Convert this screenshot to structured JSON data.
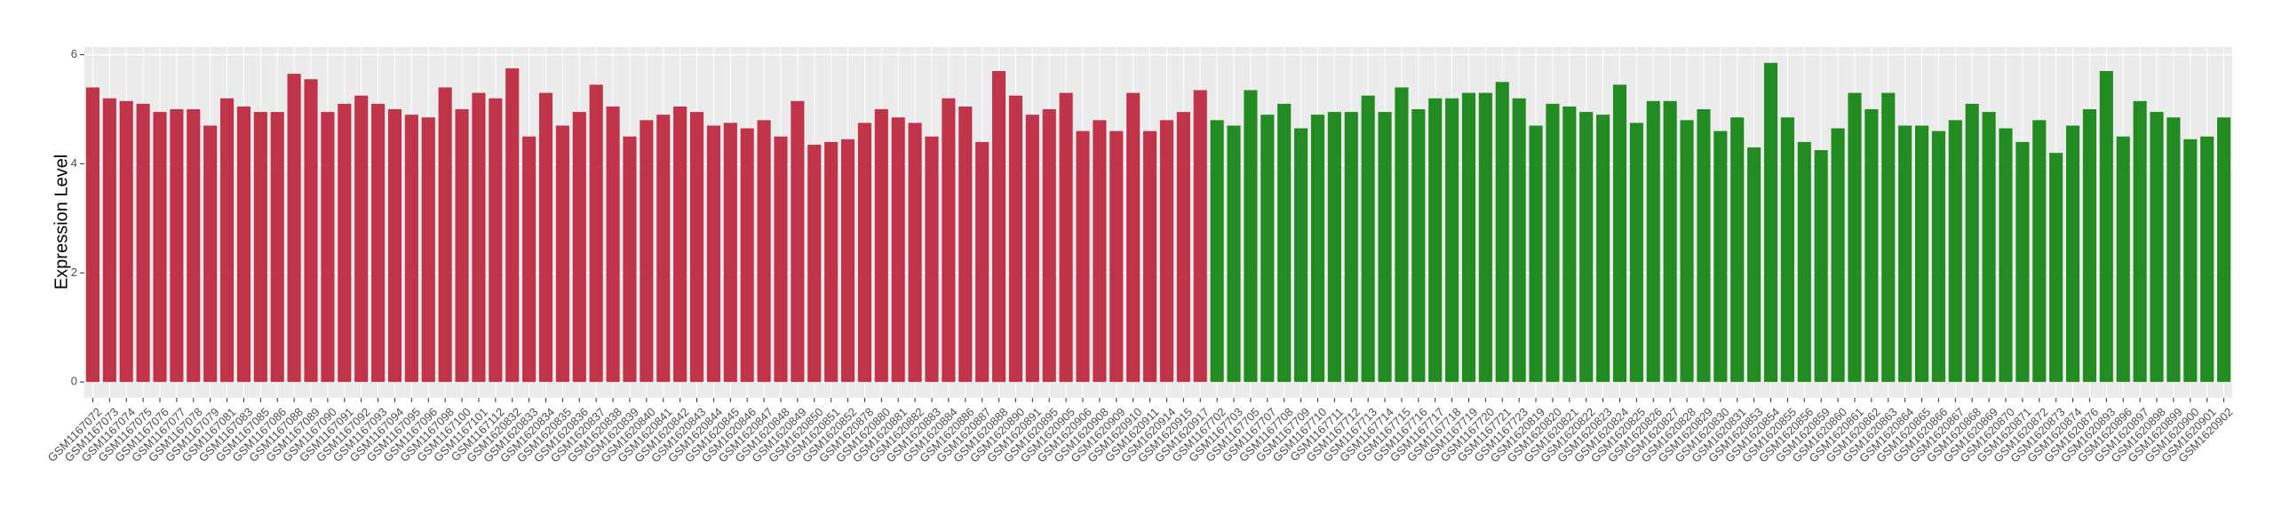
{
  "chart_data": {
    "type": "bar",
    "y_label": "Expression Level",
    "ylim": [
      -0.29,
      6.14
    ],
    "yticks": [
      0,
      2,
      4,
      6
    ],
    "grid": true,
    "series": [
      {
        "color": "#c0344a",
        "categories": [
          "GSM1167072",
          "GSM1167073",
          "GSM1167074",
          "GSM1167075",
          "GSM1167076",
          "GSM1167077",
          "GSM1167078",
          "GSM1167079",
          "GSM1167081",
          "GSM1167083",
          "GSM1167085",
          "GSM1167086",
          "GSM1167088",
          "GSM1167089",
          "GSM1167090",
          "GSM1167091",
          "GSM1167092",
          "GSM1167093",
          "GSM1167094",
          "GSM1167095",
          "GSM1167096",
          "GSM1167098",
          "GSM1167100",
          "GSM1167101",
          "GSM1167112",
          "GSM1620832",
          "GSM1620833",
          "GSM1620834",
          "GSM1620835",
          "GSM1620836",
          "GSM1620837",
          "GSM1620838",
          "GSM1620839",
          "GSM1620840",
          "GSM1620841",
          "GSM1620842",
          "GSM1620843",
          "GSM1620844",
          "GSM1620845",
          "GSM1620846",
          "GSM1620847",
          "GSM1620848",
          "GSM1620849",
          "GSM1620850",
          "GSM1620851",
          "GSM1620852",
          "GSM1620878",
          "GSM1620880",
          "GSM1620881",
          "GSM1620882",
          "GSM1620883",
          "GSM1620884",
          "GSM1620886",
          "GSM1620887",
          "GSM1620888",
          "GSM1620890",
          "GSM1620891",
          "GSM1620895",
          "GSM1620905",
          "GSM1620906",
          "GSM1620908",
          "GSM1620909",
          "GSM1620910",
          "GSM1620911",
          "GSM1620914",
          "GSM1620915",
          "GSM1620917"
        ],
        "values": [
          5.4,
          5.2,
          5.15,
          5.1,
          4.95,
          5.0,
          5.0,
          4.7,
          5.2,
          5.05,
          4.95,
          4.95,
          5.65,
          5.55,
          4.95,
          5.1,
          5.25,
          5.1,
          5.0,
          4.9,
          4.85,
          5.4,
          5.0,
          5.3,
          5.2,
          5.75,
          4.5,
          5.3,
          4.7,
          4.95,
          5.45,
          5.05,
          4.5,
          4.8,
          4.9,
          5.05,
          4.95,
          4.7,
          4.75,
          4.65,
          4.8,
          4.5,
          5.15,
          4.35,
          4.4,
          4.45,
          4.75,
          5.0,
          4.85,
          4.75,
          4.5,
          5.2,
          5.05,
          4.4,
          5.7,
          5.25,
          4.9,
          5.0,
          5.3,
          4.6,
          4.8,
          4.6,
          5.3,
          4.6,
          4.8,
          4.95,
          5.35
        ]
      },
      {
        "color": "#228b22",
        "categories": [
          "GSM1167702",
          "GSM1167703",
          "GSM1167705",
          "GSM1167707",
          "GSM1167708",
          "GSM1167709",
          "GSM1167710",
          "GSM1167711",
          "GSM1167712",
          "GSM1167713",
          "GSM1167714",
          "GSM1167715",
          "GSM1167716",
          "GSM1167717",
          "GSM1167718",
          "GSM1167719",
          "GSM1167720",
          "GSM1167721",
          "GSM1167723",
          "GSM1620819",
          "GSM1620820",
          "GSM1620821",
          "GSM1620822",
          "GSM1620823",
          "GSM1620824",
          "GSM1620825",
          "GSM1620826",
          "GSM1620827",
          "GSM1620828",
          "GSM1620829",
          "GSM1620830",
          "GSM1620831",
          "GSM1620853",
          "GSM1620854",
          "GSM1620855",
          "GSM1620856",
          "GSM1620859",
          "GSM1620860",
          "GSM1620861",
          "GSM1620862",
          "GSM1620863",
          "GSM1620864",
          "GSM1620865",
          "GSM1620866",
          "GSM1620867",
          "GSM1620868",
          "GSM1620869",
          "GSM1620870",
          "GSM1620871",
          "GSM1620872",
          "GSM1620873",
          "GSM1620874",
          "GSM1620876",
          "GSM1620893",
          "GSM1620896",
          "GSM1620897",
          "GSM1620898",
          "GSM1620899",
          "GSM1620900",
          "GSM1620901",
          "GSM1620902"
        ],
        "values": [
          4.8,
          4.7,
          5.35,
          4.9,
          5.1,
          4.65,
          4.9,
          4.95,
          4.95,
          5.25,
          4.95,
          5.4,
          5.0,
          5.2,
          5.2,
          5.3,
          5.3,
          5.5,
          5.2,
          4.7,
          5.1,
          5.05,
          4.95,
          4.9,
          5.45,
          4.75,
          5.15,
          5.15,
          4.8,
          5.0,
          4.6,
          4.85,
          4.3,
          5.85,
          4.85,
          4.4,
          4.25,
          4.65,
          5.3,
          5.0,
          5.3,
          4.7,
          4.7,
          4.6,
          4.8,
          5.1,
          4.95,
          4.65,
          4.4,
          4.8,
          4.2,
          4.7,
          5.0,
          5.7,
          4.5,
          5.15,
          4.95,
          4.85,
          4.45,
          4.5,
          4.85
        ]
      }
    ]
  }
}
